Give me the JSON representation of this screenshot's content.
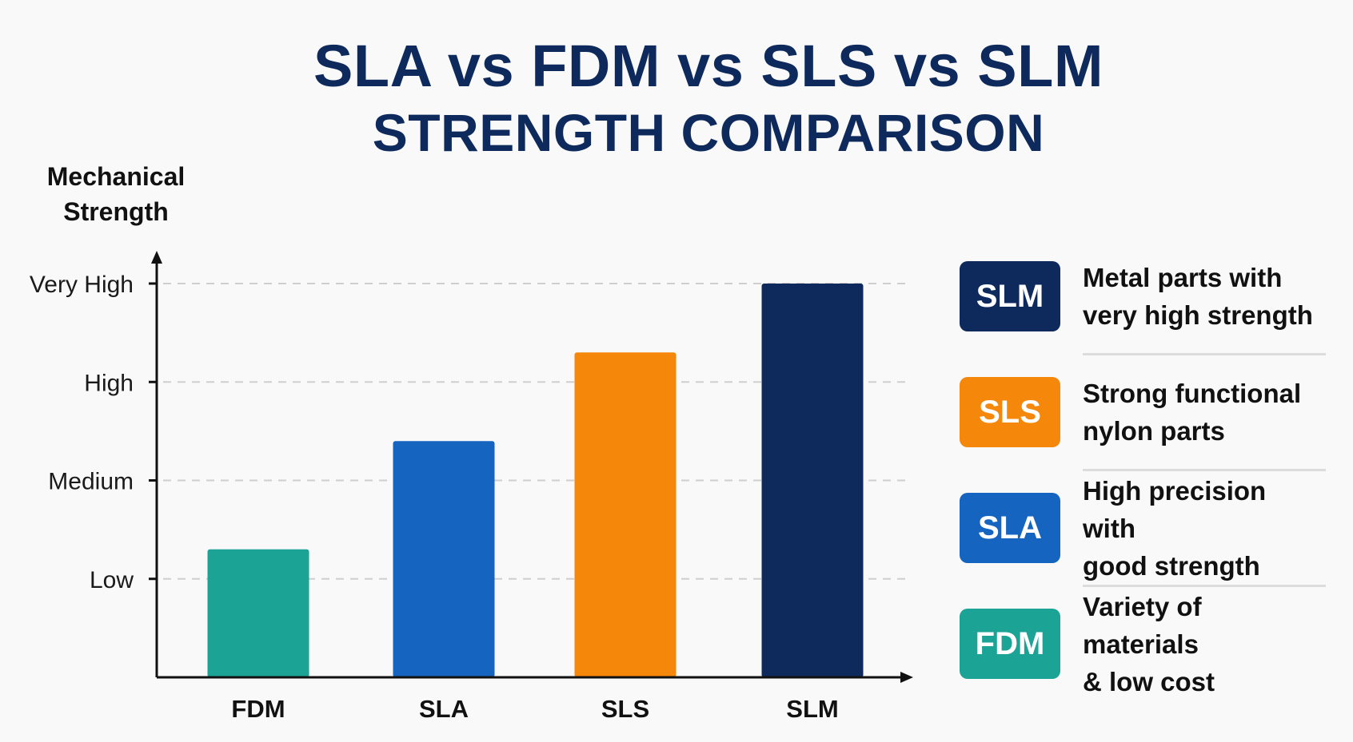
{
  "title_line1": "SLA vs FDM vs SLS vs SLM",
  "title_line2": "STRENGTH COMPARISON",
  "chart_data": {
    "type": "bar",
    "categories": [
      "FDM",
      "SLA",
      "SLS",
      "SLM"
    ],
    "values": [
      1.3,
      2.4,
      3.3,
      4.0
    ],
    "ylabel": "Mechanical Strength",
    "ylabel_lines": [
      "Mechanical",
      "Strength"
    ],
    "xlabel": "",
    "ylim": [
      0,
      4.0
    ],
    "y_ticks": [
      {
        "value": 1,
        "label": "Low"
      },
      {
        "value": 2,
        "label": "Medium"
      },
      {
        "value": 3,
        "label": "High"
      },
      {
        "value": 4,
        "label": "Very High"
      }
    ],
    "grid": "horizontal dashed",
    "colors": [
      "#1ba396",
      "#1565c0",
      "#f5880a",
      "#0e2a5c"
    ]
  },
  "legend": [
    {
      "badge": "SLM",
      "color": "#0e2a5c",
      "desc_lines": [
        "Metal parts with",
        "very high strength"
      ]
    },
    {
      "badge": "SLS",
      "color": "#f5880a",
      "desc_lines": [
        "Strong functional",
        "nylon parts"
      ]
    },
    {
      "badge": "SLA",
      "color": "#1565c0",
      "desc_lines": [
        "High precision with",
        "good strength"
      ]
    },
    {
      "badge": "FDM",
      "color": "#1ba396",
      "desc_lines": [
        "Variety of materials",
        "& low cost"
      ]
    }
  ]
}
